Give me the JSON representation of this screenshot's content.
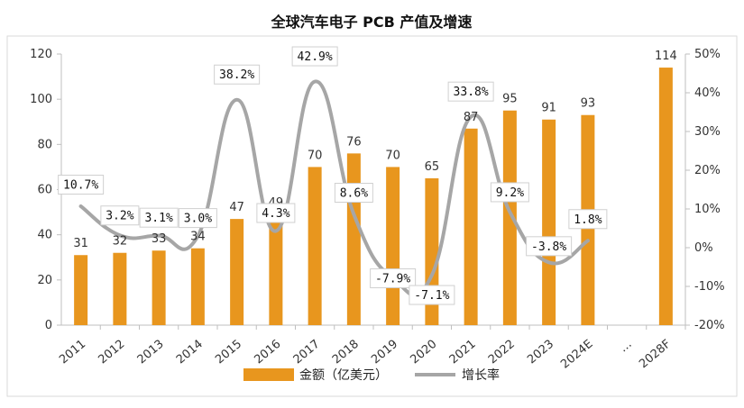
{
  "chart_data": {
    "type": "bar",
    "title": "全球汽车电子 PCB 产值及增速",
    "categories": [
      "2011",
      "2012",
      "2013",
      "2014",
      "2015",
      "2016",
      "2017",
      "2018",
      "2019",
      "2020",
      "2021",
      "2022",
      "2023",
      "2024E",
      "…",
      "2028F"
    ],
    "series": [
      {
        "name": "金额（亿美元）",
        "type": "bar",
        "axis": "left",
        "color": "#E8961E",
        "values": [
          31,
          32,
          33,
          34,
          47,
          49,
          70,
          76,
          70,
          65,
          87,
          95,
          91,
          93,
          null,
          114
        ],
        "labels": [
          "31",
          "32",
          "33",
          "34",
          "47",
          "49",
          "70",
          "76",
          "70",
          "65",
          "87",
          "95",
          "91",
          "93",
          "",
          "114"
        ]
      },
      {
        "name": "增长率",
        "type": "line",
        "axis": "right",
        "color": "#A6A6A6",
        "values": [
          10.7,
          3.2,
          3.1,
          3.0,
          38.2,
          4.3,
          42.9,
          8.6,
          -7.9,
          -7.1,
          33.8,
          9.2,
          -3.8,
          1.8,
          null,
          null
        ],
        "labels": [
          "10.7%",
          "3.2%",
          "3.1%",
          "3.0%",
          "38.2%",
          "4.3%",
          "42.9%",
          "8.6%",
          "-7.9%",
          "-7.1%",
          "33.8%",
          "9.2%",
          "-3.8%",
          "1.8%",
          "",
          ""
        ]
      }
    ],
    "y_left": {
      "min": 0,
      "max": 120,
      "step": 20,
      "ticks": [
        "0",
        "20",
        "40",
        "60",
        "80",
        "100",
        "120"
      ]
    },
    "y_right": {
      "min": -20,
      "max": 50,
      "step": 10,
      "ticks": [
        "-20%",
        "-10%",
        "0%",
        "10%",
        "20%",
        "30%",
        "40%",
        "50%"
      ]
    },
    "legend": {
      "position": "bottom",
      "items": [
        "金额（亿美元）",
        "增长率"
      ]
    },
    "grid": false
  }
}
